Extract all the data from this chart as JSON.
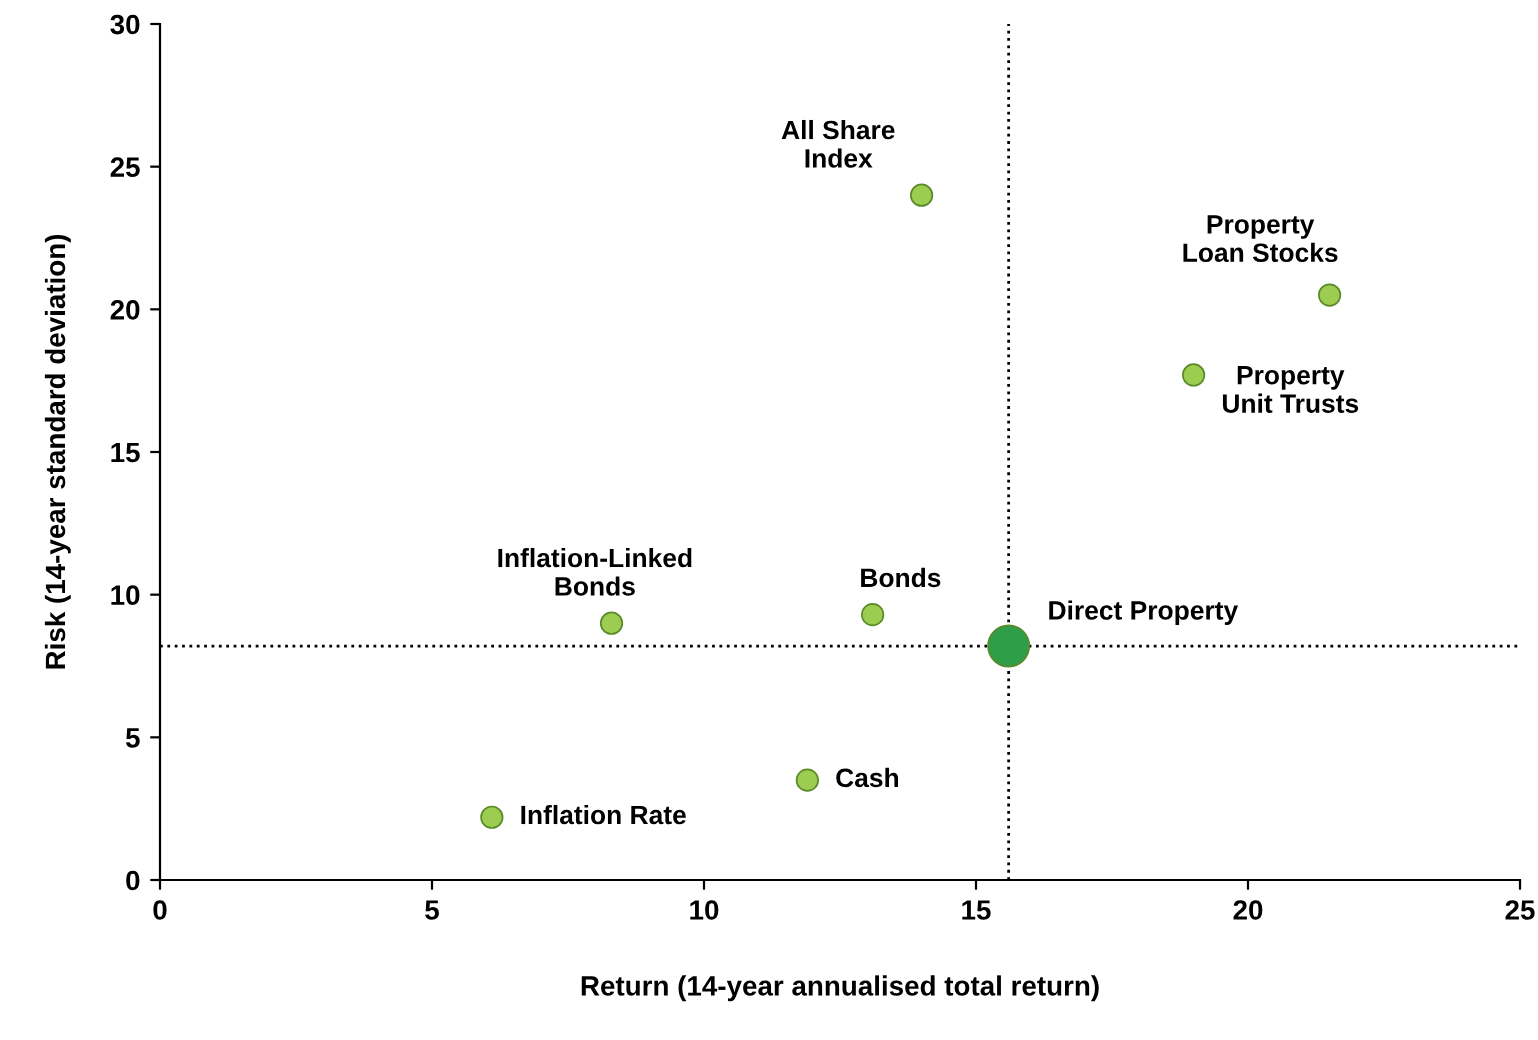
{
  "chart_data": {
    "type": "scatter",
    "xlabel": "Return (14-year annualised total return)",
    "ylabel": "Risk (14-year standard deviation)",
    "xlim": [
      0,
      25
    ],
    "ylim": [
      0,
      30
    ],
    "xticks": [
      0,
      5,
      10,
      15,
      20,
      25
    ],
    "yticks": [
      0,
      5,
      10,
      15,
      20,
      25,
      30
    ],
    "grid": false,
    "legend": false,
    "marker": "circle",
    "series": [
      {
        "name": "All Share\nIndex",
        "color": "#9ccc50",
        "x": [
          14.0
        ],
        "values": [
          24.0
        ]
      },
      {
        "name": "Property\nLoan Stocks",
        "color": "#9ccc50",
        "x": [
          21.5
        ],
        "values": [
          20.5
        ]
      },
      {
        "name": "Property\nUnit Trusts",
        "color": "#9ccc50",
        "x": [
          19.0
        ],
        "values": [
          17.7
        ]
      },
      {
        "name": "Inflation-Linked\nBonds",
        "color": "#9ccc50",
        "x": [
          8.3
        ],
        "values": [
          9.0
        ]
      },
      {
        "name": "Bonds",
        "color": "#9ccc50",
        "x": [
          13.1
        ],
        "values": [
          9.3
        ]
      },
      {
        "name": "Direct Property",
        "color": "#2f9e48",
        "x": [
          15.6
        ],
        "values": [
          8.2
        ]
      },
      {
        "name": "Cash",
        "color": "#9ccc50",
        "x": [
          11.9
        ],
        "values": [
          3.5
        ]
      },
      {
        "name": "Inflation Rate",
        "color": "#9ccc50",
        "x": [
          6.1
        ],
        "values": [
          2.2
        ]
      }
    ],
    "ref_lines": [
      {
        "axis": "x",
        "value": 15.6,
        "line_style": "dotted",
        "color": "#000000"
      },
      {
        "axis": "y",
        "value": 8.2,
        "line_style": "dotted",
        "color": "#000000"
      }
    ]
  }
}
